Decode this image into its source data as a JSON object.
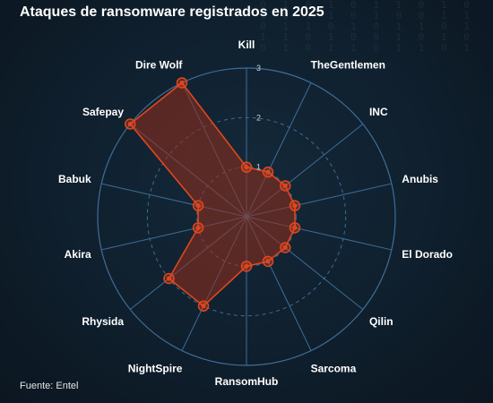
{
  "title": "Ataques de ransomware registrados en 2025",
  "source": "Fuente: Entel",
  "colors": {
    "background": "#0e1a26",
    "grid": "#3f6d96",
    "series_stroke": "#e0461e",
    "series_fill": "rgba(150,45,25,0.55)",
    "point": "#e0461e"
  },
  "chart_data": {
    "type": "radar",
    "title": "Ataques de ransomware registrados en 2025",
    "categories": [
      "Kill",
      "TheGentlemen",
      "INC",
      "Anubis",
      "El Dorado",
      "Qilin",
      "Sarcoma",
      "RansomHub",
      "NightSpire",
      "Rhysida",
      "Akira",
      "Babuk",
      "Safepay",
      "Dire Wolf"
    ],
    "series": [
      {
        "values": [
          1,
          1,
          1,
          1,
          1,
          1,
          1,
          1,
          2,
          2,
          1,
          1,
          3,
          3
        ]
      }
    ],
    "rlim": [
      0,
      3
    ],
    "rticks": [
      1,
      2,
      3
    ],
    "grid": true,
    "legend": "none"
  }
}
